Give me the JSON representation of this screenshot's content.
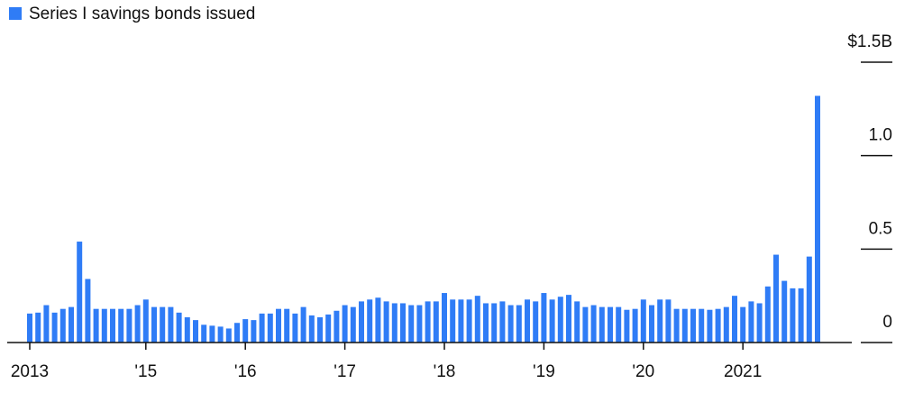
{
  "chart_data": {
    "type": "bar",
    "series": [
      {
        "name": "Series I savings bonds issued",
        "color": "#2f7cf6",
        "values": [
          0.155,
          0.16,
          0.2,
          0.16,
          0.18,
          0.19,
          0.54,
          0.34,
          0.18,
          0.18,
          0.18,
          0.18,
          0.18,
          0.2,
          0.23,
          0.19,
          0.19,
          0.19,
          0.16,
          0.135,
          0.12,
          0.095,
          0.09,
          0.085,
          0.075,
          0.105,
          0.125,
          0.12,
          0.155,
          0.155,
          0.18,
          0.18,
          0.155,
          0.19,
          0.145,
          0.135,
          0.15,
          0.17,
          0.2,
          0.19,
          0.22,
          0.23,
          0.24,
          0.22,
          0.21,
          0.21,
          0.2,
          0.2,
          0.22,
          0.22,
          0.265,
          0.23,
          0.23,
          0.23,
          0.25,
          0.21,
          0.21,
          0.22,
          0.2,
          0.2,
          0.23,
          0.22,
          0.265,
          0.23,
          0.245,
          0.255,
          0.22,
          0.19,
          0.2,
          0.19,
          0.19,
          0.19,
          0.175,
          0.18,
          0.23,
          0.2,
          0.23,
          0.23,
          0.18,
          0.18,
          0.18,
          0.18,
          0.175,
          0.18,
          0.19,
          0.25,
          0.19,
          0.22,
          0.21,
          0.3,
          0.47,
          0.33,
          0.29,
          0.29,
          0.46,
          1.32
        ]
      }
    ],
    "categories": [
      "2013",
      null,
      null,
      null,
      null,
      null,
      null,
      null,
      null,
      null,
      null,
      null,
      null,
      null,
      "'15",
      null,
      null,
      null,
      null,
      null,
      null,
      null,
      null,
      null,
      null,
      null,
      "'16",
      null,
      null,
      null,
      null,
      null,
      null,
      null,
      null,
      null,
      null,
      null,
      "'17",
      null,
      null,
      null,
      null,
      null,
      null,
      null,
      null,
      null,
      null,
      null,
      "'18",
      null,
      null,
      null,
      null,
      null,
      null,
      null,
      null,
      null,
      null,
      null,
      "'19",
      null,
      null,
      null,
      null,
      null,
      null,
      null,
      null,
      null,
      null,
      null,
      "'20",
      null,
      null,
      null,
      null,
      null,
      null,
      null,
      null,
      null,
      null,
      null,
      "2021",
      null,
      null,
      null,
      null,
      null,
      null,
      null,
      null,
      null
    ],
    "ylim": [
      0,
      1.5
    ],
    "yticks": [
      0,
      0.5,
      {
        "value": 1.0,
        "label": "1.0"
      },
      {
        "value": 1.5,
        "label": "$1.5B"
      }
    ]
  }
}
